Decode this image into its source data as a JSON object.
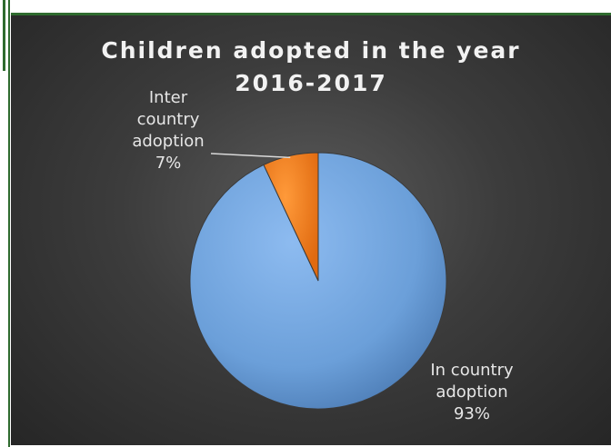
{
  "chart_data": {
    "type": "pie",
    "title_lines": [
      "Children adopted in the year",
      "2016-2017"
    ],
    "slices": [
      {
        "label_lines": [
          "Inter",
          "country",
          "adoption",
          "7%"
        ],
        "value": 7,
        "color": "#f07a1a"
      },
      {
        "label_lines": [
          "In country",
          "adoption",
          "93%"
        ],
        "value": 93,
        "color": "#6fa1dc"
      }
    ],
    "legend": "none"
  }
}
